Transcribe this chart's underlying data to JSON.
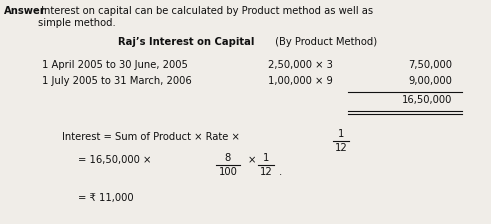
{
  "bg_color": "#f0ede8",
  "text_color": "#111111",
  "answer_bold": "Answer",
  "answer_normal": " Interest on capital can be calculated by Product method as well as\nsimple method.",
  "title_bold": "Raj’s Interest on Capital",
  "title_normal": " (By Product Method)",
  "row1_date": "1 April 2005 to 30 June, 2005",
  "row1_product": "2,50,000 × 3",
  "row1_amount": "7,50,000",
  "row2_date": "1 July 2005 to 31 March, 2006",
  "row2_product": "1,00,000 × 9",
  "row2_amount": "9,00,000",
  "total_amount": "16,50,000",
  "formula_line1a": "Interest = Sum of Product × Rate ×",
  "formula_frac1_num": "1",
  "formula_frac1_den": "12",
  "formula_line2a": "= 16,50,000 ×",
  "formula_frac2_num": "8",
  "formula_frac2_den": "100",
  "formula_x_mid": "×",
  "formula_frac3_num": "1",
  "formula_frac3_den": "12",
  "formula_line3": "= ₹ 11,000",
  "fs": 7.2
}
